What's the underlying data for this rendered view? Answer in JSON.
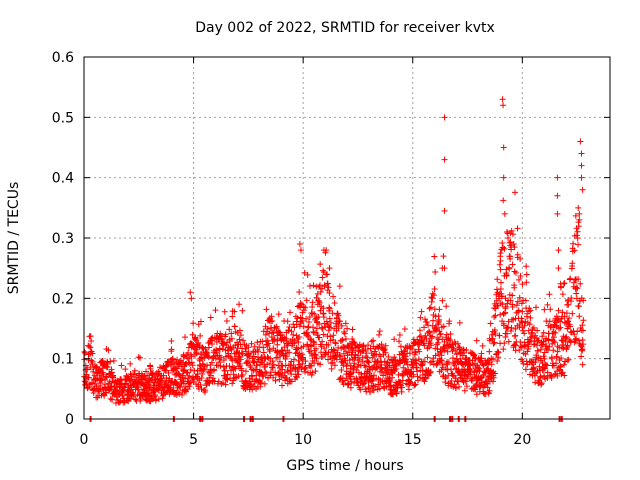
{
  "chart_data": {
    "type": "scatter",
    "title": "Day 002 of 2022, SRMTID for receiver kvtx",
    "xlabel": "GPS time / hours",
    "ylabel": "SRMTID / TECUs",
    "xlim": [
      0,
      24
    ],
    "ylim": [
      0,
      0.6
    ],
    "xticks": [
      0,
      5,
      10,
      15,
      20
    ],
    "yticks": [
      0,
      0.1,
      0.2,
      0.3,
      0.4,
      0.5,
      0.6
    ],
    "xtick_labels": [
      "0",
      "5",
      "10",
      "15",
      "20"
    ],
    "ytick_labels": [
      "0",
      "0.1",
      "0.2",
      "0.3",
      "0.4",
      "0.5",
      "0.6"
    ],
    "grid": true,
    "marker": "+",
    "color": "#ff0000",
    "series": [
      {
        "name": "SRMTID",
        "profile": [
          [
            0.0,
            0.085
          ],
          [
            0.25,
            0.095
          ],
          [
            0.5,
            0.06
          ],
          [
            1.0,
            0.07
          ],
          [
            1.5,
            0.045
          ],
          [
            2.0,
            0.05
          ],
          [
            2.5,
            0.055
          ],
          [
            3.0,
            0.05
          ],
          [
            3.5,
            0.06
          ],
          [
            4.0,
            0.07
          ],
          [
            4.5,
            0.07
          ],
          [
            4.9,
            0.1
          ],
          [
            5.5,
            0.08
          ],
          [
            6.0,
            0.1
          ],
          [
            6.5,
            0.1
          ],
          [
            7.0,
            0.11
          ],
          [
            7.5,
            0.08
          ],
          [
            8.0,
            0.09
          ],
          [
            8.5,
            0.12
          ],
          [
            9.0,
            0.1
          ],
          [
            9.5,
            0.11
          ],
          [
            10.0,
            0.14
          ],
          [
            10.5,
            0.13
          ],
          [
            11.0,
            0.18
          ],
          [
            11.5,
            0.13
          ],
          [
            12.0,
            0.09
          ],
          [
            12.5,
            0.09
          ],
          [
            13.0,
            0.08
          ],
          [
            13.5,
            0.09
          ],
          [
            14.0,
            0.07
          ],
          [
            14.5,
            0.08
          ],
          [
            15.0,
            0.09
          ],
          [
            15.5,
            0.11
          ],
          [
            16.0,
            0.15
          ],
          [
            16.5,
            0.1
          ],
          [
            17.0,
            0.09
          ],
          [
            17.5,
            0.08
          ],
          [
            18.0,
            0.07
          ],
          [
            18.5,
            0.07
          ],
          [
            19.0,
            0.2
          ],
          [
            19.5,
            0.22
          ],
          [
            20.0,
            0.16
          ],
          [
            20.5,
            0.11
          ],
          [
            21.0,
            0.1
          ],
          [
            21.5,
            0.13
          ],
          [
            22.0,
            0.12
          ],
          [
            22.5,
            0.25
          ],
          [
            22.8,
            0.14
          ]
        ],
        "outliers": [
          [
            4.85,
            0.21
          ],
          [
            4.9,
            0.2
          ],
          [
            9.85,
            0.29
          ],
          [
            9.9,
            0.28
          ],
          [
            10.95,
            0.28
          ],
          [
            11.05,
            0.28
          ],
          [
            11.2,
            0.25
          ],
          [
            16.35,
            0.25
          ],
          [
            16.4,
            0.27
          ],
          [
            16.45,
            0.5
          ],
          [
            16.45,
            0.43
          ],
          [
            16.45,
            0.345
          ],
          [
            16.45,
            0.25
          ],
          [
            19.1,
            0.53
          ],
          [
            19.12,
            0.52
          ],
          [
            19.15,
            0.45
          ],
          [
            19.15,
            0.4
          ],
          [
            19.2,
            0.34
          ],
          [
            19.3,
            0.31
          ],
          [
            19.35,
            0.3
          ],
          [
            21.6,
            0.4
          ],
          [
            21.6,
            0.37
          ],
          [
            21.6,
            0.34
          ],
          [
            21.65,
            0.28
          ],
          [
            21.65,
            0.25
          ],
          [
            22.65,
            0.46
          ],
          [
            22.7,
            0.44
          ],
          [
            22.7,
            0.42
          ],
          [
            22.7,
            0.4
          ],
          [
            22.75,
            0.38
          ],
          [
            22.55,
            0.35
          ],
          [
            22.6,
            0.34
          ],
          [
            22.6,
            0.33
          ]
        ]
      }
    ],
    "baseline_markers_x": [
      0.3,
      4.1,
      5.3,
      5.4,
      7.3,
      7.6,
      7.7,
      9.1,
      16.0,
      16.7,
      16.8,
      17.1,
      17.4,
      21.7,
      21.8
    ]
  }
}
